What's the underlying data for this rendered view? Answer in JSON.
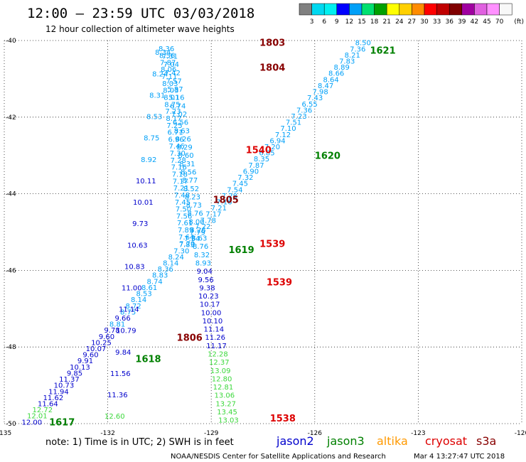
{
  "title": "12:00 – 23:59 UTC 03/03/2018",
  "subtitle": "12 hour collection of altimeter wave heights",
  "note": "note:  1) Time is in UTC;  2) SWH is in feet",
  "footer": "NOAA/NESDIS Center for Satellite Applications and Research",
  "timestamp": "Mar  4 13:27:47 UTC 2018",
  "colorbar": {
    "unit": "(ft)",
    "labels": [
      "3",
      "6",
      "9",
      "12",
      "15",
      "18",
      "21",
      "24",
      "27",
      "30",
      "33",
      "36",
      "39",
      "42",
      "45",
      "70"
    ],
    "colors": [
      "#808080",
      "#00d8f0",
      "#00f0f0",
      "#0000ff",
      "#00a0f8",
      "#00e070",
      "#00a000",
      "#fefe00",
      "#ffd000",
      "#ff8c00",
      "#ff0000",
      "#c00000",
      "#800000",
      "#a000a0",
      "#e060e0",
      "#ff90ff",
      "#f8f8f8"
    ]
  },
  "satellites": [
    {
      "name": "jason2",
      "color": "#0000cc"
    },
    {
      "name": "jason3",
      "color": "#008000"
    },
    {
      "name": "altika",
      "color": "#ff9900"
    },
    {
      "name": "cryosat",
      "color": "#dd0000"
    },
    {
      "name": "s3a",
      "color": "#880000"
    }
  ],
  "chart_data": {
    "type": "scatter",
    "title": "12:00 – 23:59 UTC 03/03/2018",
    "subtitle": "12 hour collection of altimeter wave heights",
    "xlabel": "",
    "ylabel": "",
    "xlim": [
      -135,
      -120
    ],
    "ylim": [
      -50,
      -40
    ],
    "x_ticks": [
      "-135",
      "-132",
      "-129",
      "-126",
      "-123",
      "-120"
    ],
    "y_ticks": [
      "-40",
      "-42",
      "-44",
      "-46",
      "-48",
      "-50"
    ],
    "grid": true,
    "series": [
      {
        "swath": "jason3-1617",
        "x0": -134.2,
        "y0": -49.95,
        "x1": -124.6,
        "y1": -40.05,
        "values": [
          "12.00",
          "12.01",
          "12.72",
          "11.64",
          "11.62",
          "11.94",
          "10.73",
          "11.37",
          "9.85",
          "10.13",
          "9.91",
          "9.60",
          "10.07",
          "10.25",
          "9.60",
          "9.78",
          "8.81",
          "9.66",
          "8.75",
          "8.72",
          "8.14",
          "8.53",
          "8.61",
          "8.74",
          "8.83",
          "8.36",
          "8.14",
          "8.24",
          "7.30",
          "7.83",
          "7.34",
          "7.79",
          "7.22",
          "7.78",
          "7.17",
          "7.21",
          "7.16",
          "7.28",
          "7.54",
          "7.45",
          "7.32",
          "6.90",
          "7.87",
          "8.35",
          "6.85",
          "7.20",
          "6.94",
          "7.12",
          "7.10",
          "7.51",
          "7.23",
          "7.36",
          "6.55",
          "7.43",
          "7.98",
          "8.47",
          "8.64",
          "8.66",
          "8.89",
          "7.83",
          "8.21",
          "7.36",
          "8.50"
        ],
        "colors": [
          "#0000cc",
          "#3cd83c",
          "#3cd83c",
          "#0000cc",
          "#0000cc",
          "#0000cc",
          "#0000cc",
          "#0000cc",
          "#0000cc",
          "#0000cc",
          "#0000cc",
          "#0000cc",
          "#0000cc",
          "#0000cc",
          "#0000cc",
          "#0000cc",
          "#00a0f8",
          "#0000cc",
          "#00a0f8",
          "#00a0f8",
          "#00a0f8",
          "#00a0f8",
          "#00a0f8",
          "#00a0f8",
          "#00a0f8",
          "#00a0f8",
          "#00a0f8",
          "#00a0f8",
          "#00a0f8",
          "#00a0f8",
          "#00a0f8",
          "#00a0f8",
          "#00a0f8",
          "#00a0f8",
          "#00a0f8",
          "#00a0f8",
          "#00a0f8",
          "#00a0f8",
          "#00a0f8",
          "#00a0f8",
          "#00a0f8",
          "#00a0f8",
          "#00a0f8",
          "#00a0f8",
          "#00a0f8",
          "#00a0f8",
          "#00a0f8",
          "#00a0f8",
          "#00a0f8",
          "#00a0f8",
          "#00a0f8",
          "#00a0f8",
          "#00a0f8",
          "#00a0f8",
          "#00a0f8",
          "#00a0f8",
          "#00a0f8",
          "#00a0f8",
          "#00a0f8",
          "#00a0f8",
          "#00a0f8",
          "#00a0f8",
          "#00a0f8"
        ]
      },
      {
        "swath": "jason2-1618",
        "x0": -131.8,
        "y0": -49.8,
        "x1": -130.4,
        "y1": -40.3,
        "values": [
          "12.60",
          "11.36",
          "11.56",
          "9.84",
          "10.79",
          "11.14",
          "11.00",
          "10.83",
          "10.63",
          "9.73",
          "10.01",
          "10.11",
          "8.92",
          "8.75",
          "8.53",
          "8.31",
          "8.24",
          "8.34"
        ],
        "colors": [
          "#3cd83c",
          "#0000cc",
          "#0000cc",
          "#0000cc",
          "#0000cc",
          "#0000cc",
          "#0000cc",
          "#0000cc",
          "#0000cc",
          "#0000cc",
          "#0000cc",
          "#0000cc",
          "#00a0f8",
          "#00a0f8",
          "#00a0f8",
          "#00a0f8",
          "#00a0f8",
          "#00a0f8"
        ]
      },
      {
        "swath": "jason3-1619",
        "x0": -128.5,
        "y0": -49.9,
        "x1": -130.2,
        "y1": -40.4,
        "values": [
          "13.03",
          "13.45",
          "13.27",
          "13.06",
          "12.81",
          "12.80",
          "13.09",
          "12.37",
          "12.28",
          "11.17",
          "11.26",
          "11.14",
          "10.10",
          "10.00",
          "10.17",
          "10.23",
          "9.38",
          "9.56",
          "9.04",
          "8.93",
          "8.32",
          "8.76",
          "8.63",
          "8.26",
          "8.00",
          "8.76",
          "8.73",
          "8.23",
          "8.52",
          "8.77",
          "8.56",
          "8.31",
          "8.60",
          "8.29",
          "8.26",
          "8.63",
          "6.56",
          "7.02",
          "6.74",
          "5.16",
          "5.87",
          "7.57",
          "7.42",
          "7.04",
          "7.31"
        ],
        "colors": [
          "#3cd83c",
          "#3cd83c",
          "#3cd83c",
          "#3cd83c",
          "#3cd83c",
          "#3cd83c",
          "#3cd83c",
          "#3cd83c",
          "#3cd83c",
          "#0000cc",
          "#0000cc",
          "#0000cc",
          "#0000cc",
          "#0000cc",
          "#0000cc",
          "#0000cc",
          "#0000cc",
          "#0000cc",
          "#0000cc",
          "#00a0f8",
          "#00a0f8",
          "#00a0f8",
          "#00a0f8",
          "#00a0f8",
          "#00a0f8",
          "#00a0f8",
          "#00a0f8",
          "#00a0f8",
          "#00a0f8",
          "#00a0f8",
          "#00a0f8",
          "#00a0f8",
          "#00a0f8",
          "#00a0f8",
          "#00a0f8",
          "#00a0f8",
          "#00a0f8",
          "#00a0f8",
          "#00a0f8",
          "#00a0f8",
          "#00a0f8",
          "#00a0f8",
          "#00a0f8",
          "#00a0f8",
          "#00a0f8"
        ]
      },
      {
        "swath": "s3a-1805",
        "x0": -129.7,
        "y0": -45.3,
        "x1": -130.3,
        "y1": -40.2,
        "values": [
          "7.70",
          "7.64",
          "7.89",
          "7.61",
          "7.56",
          "7.50",
          "7.45",
          "7.48",
          "7.21",
          "7.17",
          "7.18",
          "7.16",
          "7.28",
          "7.30",
          "7.46",
          "6.96",
          "6.71",
          "7.25",
          "8.17",
          "7.23",
          "8.75",
          "8.01",
          "8.03",
          "8.03",
          "7.11",
          "8.06",
          "7.87",
          "8.56",
          "8.36"
        ],
        "colors": [
          "#00a0f8",
          "#00a0f8",
          "#00a0f8",
          "#00a0f8",
          "#00a0f8",
          "#00a0f8",
          "#00a0f8",
          "#00a0f8",
          "#00a0f8",
          "#00a0f8",
          "#00a0f8",
          "#00a0f8",
          "#00a0f8",
          "#00a0f8",
          "#00a0f8",
          "#00a0f8",
          "#00a0f8",
          "#00a0f8",
          "#00a0f8",
          "#00a0f8",
          "#00a0f8",
          "#00a0f8",
          "#00a0f8",
          "#00a0f8",
          "#00a0f8",
          "#00a0f8",
          "#00a0f8",
          "#00a0f8",
          "#00a0f8"
        ]
      }
    ],
    "pass_labels": [
      {
        "text": "1803",
        "x": -127.6,
        "y": -40.05,
        "color": "#880000"
      },
      {
        "text": "1804",
        "x": -127.6,
        "y": -40.7,
        "color": "#880000"
      },
      {
        "text": "1621",
        "x": -124.4,
        "y": -40.25,
        "color": "#008000"
      },
      {
        "text": "1540",
        "x": -128.0,
        "y": -42.85,
        "color": "#dd0000"
      },
      {
        "text": "1620",
        "x": -126.0,
        "y": -43.0,
        "color": "#008000"
      },
      {
        "text": "1805",
        "x": -128.95,
        "y": -44.15,
        "color": "#880000"
      },
      {
        "text": "1539",
        "x": -127.6,
        "y": -45.3,
        "color": "#dd0000"
      },
      {
        "text": "1619",
        "x": -128.5,
        "y": -45.45,
        "color": "#008000"
      },
      {
        "text": "1539",
        "x": -127.4,
        "y": -46.3,
        "color": "#dd0000"
      },
      {
        "text": "1806",
        "x": -130.0,
        "y": -47.75,
        "color": "#880000"
      },
      {
        "text": "1618",
        "x": -131.2,
        "y": -48.3,
        "color": "#008000"
      },
      {
        "text": "1538",
        "x": -127.3,
        "y": -49.85,
        "color": "#dd0000"
      },
      {
        "text": "1617",
        "x": -133.7,
        "y": -49.95,
        "color": "#008000"
      }
    ]
  }
}
